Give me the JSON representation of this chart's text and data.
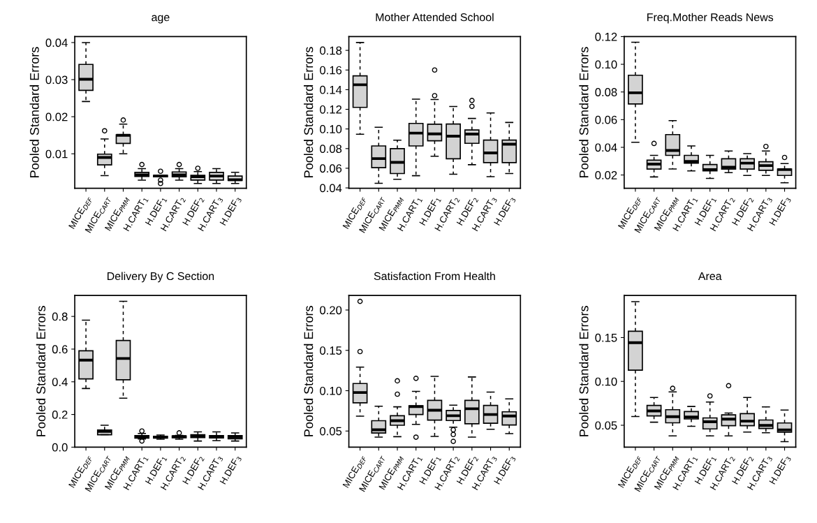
{
  "chart_data": [
    {
      "type": "box",
      "title": "age",
      "ylabel": "Pooled Standard Errors",
      "color": "#d3d3d3",
      "categories": [
        "MICE$_{DEF}$",
        "MICE$_{CART}$",
        "MICE$_{PMM}$",
        "H.CART$_{1}$",
        "H.DEF$_{1}$",
        "H.CART$_{2}$",
        "H.DEF$_{2}$",
        "H.CART$_{3}$",
        "H.DEF$_{3}$"
      ],
      "ylim": [
        0.0007,
        0.0416
      ],
      "yticks": [
        0.01,
        0.02,
        0.03,
        0.04
      ],
      "boxes": [
        {
          "low": 0.0241,
          "q1": 0.0271,
          "median": 0.0301,
          "q3": 0.0341,
          "high": 0.04
        },
        {
          "low": 0.0041,
          "q1": 0.007,
          "median": 0.009,
          "q3": 0.0099,
          "high": 0.014,
          "outliers": [
            0.0162
          ]
        },
        {
          "low": 0.01,
          "q1": 0.0128,
          "median": 0.015,
          "q3": 0.0151,
          "high": 0.018,
          "outliers": [
            0.0191
          ]
        },
        {
          "low": 0.0029,
          "q1": 0.0039,
          "median": 0.0043,
          "q3": 0.005,
          "high": 0.006,
          "outliers": [
            0.0071
          ]
        },
        {
          "low": 0.0038,
          "q1": 0.0038,
          "median": 0.004,
          "q3": 0.0042,
          "high": 0.0042,
          "outliers": [
            0.0053,
            0.0029,
            0.002
          ]
        },
        {
          "low": 0.0029,
          "q1": 0.0038,
          "median": 0.0043,
          "q3": 0.0051,
          "high": 0.006,
          "outliers": [
            0.0071
          ]
        },
        {
          "low": 0.002,
          "q1": 0.0029,
          "median": 0.0038,
          "q3": 0.0042,
          "high": 0.0052,
          "outliers": [
            0.0061
          ]
        },
        {
          "low": 0.002,
          "q1": 0.0029,
          "median": 0.004,
          "q3": 0.005,
          "high": 0.006
        },
        {
          "low": 0.002,
          "q1": 0.0028,
          "median": 0.003,
          "q3": 0.004,
          "high": 0.005
        }
      ]
    },
    {
      "type": "box",
      "title": "Mother Attended School",
      "ylabel": "Pooled Standard Errors",
      "color": "#d3d3d3",
      "categories": [
        "MICE$_{DEF}$",
        "MICE$_{CART}$",
        "MICE$_{PMM}$",
        "H.CART$_{1}$",
        "H.DEF$_{1}$",
        "H.CART$_{2}$",
        "H.DEF$_{2}$",
        "H.CART$_{3}$",
        "H.DEF$_{3}$"
      ],
      "ylim": [
        0.0396,
        0.194
      ],
      "yticks": [
        0.04,
        0.06,
        0.08,
        {
          "value": 0.1,
          "label": "0.10"
        },
        0.12,
        0.14,
        0.16,
        0.18
      ],
      "boxes": [
        {
          "low": 0.0946,
          "q1": 0.122,
          "median": 0.145,
          "q3": 0.154,
          "high": 0.188
        },
        {
          "low": 0.0446,
          "q1": 0.0606,
          "median": 0.0698,
          "q3": 0.0827,
          "high": 0.1017
        },
        {
          "low": 0.0488,
          "q1": 0.0546,
          "median": 0.066,
          "q3": 0.08,
          "high": 0.0885
        },
        {
          "low": 0.0524,
          "q1": 0.0827,
          "median": 0.0958,
          "q3": 0.1056,
          "high": 0.1303
        },
        {
          "low": 0.0722,
          "q1": 0.0879,
          "median": 0.095,
          "q3": 0.1048,
          "high": 0.13,
          "outliers": [
            0.16,
            0.1339
          ]
        },
        {
          "low": 0.0539,
          "q1": 0.0696,
          "median": 0.0927,
          "q3": 0.105,
          "high": 0.1228
        },
        {
          "low": 0.0636,
          "q1": 0.0854,
          "median": 0.0948,
          "q3": 0.099,
          "high": 0.1107,
          "outliers": [
            0.129,
            0.123
          ]
        },
        {
          "low": 0.0515,
          "q1": 0.0657,
          "median": 0.0756,
          "q3": 0.0887,
          "high": 0.1163
        },
        {
          "low": 0.0546,
          "q1": 0.0657,
          "median": 0.0845,
          "q3": 0.0887,
          "high": 0.1066
        }
      ]
    },
    {
      "type": "box",
      "title": "Freq.Mother Reads News",
      "ylabel": "Pooled Standard Errors",
      "color": "#d3d3d3",
      "categories": [
        "MICE$_{DEF}$",
        "MICE$_{CART}$",
        "MICE$_{PMM}$",
        "H.CART$_{1}$",
        "H.DEF$_{1}$",
        "H.CART$_{2}$",
        "H.DEF$_{2}$",
        "H.CART$_{3}$",
        "H.DEF$_{3}$"
      ],
      "ylim": [
        0.0104,
        0.12
      ],
      "yticks": [
        0.02,
        0.04,
        0.06,
        0.08,
        {
          "value": 0.1,
          "label": "0.10"
        },
        0.12
      ],
      "boxes": [
        {
          "low": 0.0436,
          "q1": 0.0713,
          "median": 0.0794,
          "q3": 0.0921,
          "high": 0.1159
        },
        {
          "low": 0.0186,
          "q1": 0.0243,
          "median": 0.0279,
          "q3": 0.0307,
          "high": 0.0342,
          "outliers": [
            0.0428
          ]
        },
        {
          "low": 0.0243,
          "q1": 0.0342,
          "median": 0.0377,
          "q3": 0.0492,
          "high": 0.0593
        },
        {
          "low": 0.023,
          "q1": 0.0285,
          "median": 0.0298,
          "q3": 0.0342,
          "high": 0.041
        },
        {
          "low": 0.0175,
          "q1": 0.023,
          "median": 0.0239,
          "q3": 0.0276,
          "high": 0.0342
        },
        {
          "low": 0.0217,
          "q1": 0.0243,
          "median": 0.0256,
          "q3": 0.0317,
          "high": 0.0373
        },
        {
          "low": 0.0197,
          "q1": 0.0243,
          "median": 0.0286,
          "q3": 0.0317,
          "high": 0.0355
        },
        {
          "low": 0.0197,
          "q1": 0.0234,
          "median": 0.0268,
          "q3": 0.0296,
          "high": 0.0373,
          "outliers": [
            0.0406
          ]
        },
        {
          "low": 0.0144,
          "q1": 0.0197,
          "median": 0.0239,
          "q3": 0.0243,
          "high": 0.0283,
          "outliers": [
            0.0327
          ]
        }
      ]
    },
    {
      "type": "box",
      "title": "Delivery By C Section",
      "ylabel": "Pooled Standard Errors",
      "color": "#d3d3d3",
      "categories": [
        "MICE$_{DEF}$",
        "MICE$_{CART}$",
        "MICE$_{PMM}$",
        "H.CART$_{1}$",
        "H.DEF$_{1}$",
        "H.CART$_{2}$",
        "H.DEF$_{2}$",
        "H.CART$_{3}$",
        "H.DEF$_{3}$"
      ],
      "ylim": [
        0.0,
        0.928
      ],
      "yticks": [
        {
          "value": 0,
          "label": "0.0"
        },
        0.2,
        0.4,
        0.6,
        0.8
      ],
      "boxes": [
        {
          "low": 0.359,
          "q1": 0.4175,
          "median": 0.5325,
          "q3": 0.59,
          "high": 0.7775
        },
        {
          "low": 0.076,
          "q1": 0.076,
          "median": 0.096,
          "q3": 0.105,
          "high": 0.134
        },
        {
          "low": 0.3,
          "q1": 0.4125,
          "median": 0.5425,
          "q3": 0.6525,
          "high": 0.8925
        },
        {
          "low": 0.05,
          "q1": 0.055,
          "median": 0.0625,
          "q3": 0.071,
          "high": 0.084,
          "outliers": [
            0.099,
            0.0375
          ]
        },
        {
          "low": 0.049,
          "q1": 0.055,
          "median": 0.061,
          "q3": 0.067,
          "high": 0.074
        },
        {
          "low": 0.049,
          "q1": 0.0575,
          "median": 0.065,
          "q3": 0.069,
          "high": 0.0725,
          "outliers": [
            0.0875
          ]
        },
        {
          "low": 0.0375,
          "q1": 0.059,
          "median": 0.069,
          "q3": 0.076,
          "high": 0.094
        },
        {
          "low": 0.04,
          "q1": 0.056,
          "median": 0.065,
          "q3": 0.071,
          "high": 0.094
        },
        {
          "low": 0.0375,
          "q1": 0.051,
          "median": 0.0625,
          "q3": 0.071,
          "high": 0.0875
        }
      ]
    },
    {
      "type": "box",
      "title": "Satisfaction From Health",
      "ylabel": "Pooled Standard Errors",
      "color": "#d3d3d3",
      "categories": [
        "MICE$_{DEF}$",
        "MICE$_{CART}$",
        "MICE$_{PMM}$",
        "H.CART$_{1}$",
        "H.DEF$_{1}$",
        "H.CART$_{2}$",
        "H.DEF$_{2}$",
        "H.CART$_{3}$",
        "H.DEF$_{3}$"
      ],
      "ylim": [
        0.03,
        0.218
      ],
      "yticks": [
        0.05,
        {
          "value": 0.1,
          "label": "0.10"
        },
        0.15,
        {
          "value": 0.2,
          "label": "0.20"
        }
      ],
      "boxes": [
        {
          "low": 0.0685,
          "q1": 0.085,
          "median": 0.0977,
          "q3": 0.1089,
          "high": 0.1293,
          "outliers": [
            0.2107,
            0.1485
          ]
        },
        {
          "low": 0.0424,
          "q1": 0.0475,
          "median": 0.0515,
          "q3": 0.0628,
          "high": 0.0807
        },
        {
          "low": 0.043,
          "q1": 0.0572,
          "median": 0.0628,
          "q3": 0.069,
          "high": 0.08,
          "outliers": [
            0.1122,
            0.0957
          ]
        },
        {
          "low": 0.0583,
          "q1": 0.0705,
          "median": 0.0802,
          "q3": 0.0814,
          "high": 0.0992,
          "outliers": [
            0.1153,
            0.0424
          ]
        },
        {
          "low": 0.0433,
          "q1": 0.0636,
          "median": 0.0758,
          "q3": 0.088,
          "high": 0.1178
        },
        {
          "low": 0.0547,
          "q1": 0.063,
          "median": 0.069,
          "q3": 0.0755,
          "high": 0.082,
          "outliers": [
            0.0515,
            0.0457,
            0.0372
          ]
        },
        {
          "low": 0.0424,
          "q1": 0.059,
          "median": 0.0776,
          "q3": 0.088,
          "high": 0.117
        },
        {
          "low": 0.0522,
          "q1": 0.0596,
          "median": 0.0705,
          "q3": 0.0817,
          "high": 0.0982
        },
        {
          "low": 0.0468,
          "q1": 0.0575,
          "median": 0.0687,
          "q3": 0.0738,
          "high": 0.0898
        }
      ]
    },
    {
      "type": "box",
      "title": "Area",
      "ylabel": "Pooled Standard Errors",
      "color": "#d3d3d3",
      "categories": [
        "MICE$_{DEF}$",
        "MICE$_{CART}$",
        "MICE$_{PMM}$",
        "H.CART$_{1}$",
        "H.DEF$_{1}$",
        "H.CART$_{2}$",
        "H.DEF$_{2}$",
        "H.CART$_{3}$",
        "H.DEF$_{3}$"
      ],
      "ylim": [
        0.025,
        0.198
      ],
      "yticks": [
        0.05,
        {
          "value": 0.1,
          "label": "0.10"
        },
        0.15
      ],
      "boxes": [
        {
          "low": 0.06,
          "q1": 0.1128,
          "median": 0.1442,
          "q3": 0.1572,
          "high": 0.191
        },
        {
          "low": 0.0535,
          "q1": 0.0607,
          "median": 0.0663,
          "q3": 0.0726,
          "high": 0.0816
        },
        {
          "low": 0.0379,
          "q1": 0.0528,
          "median": 0.0598,
          "q3": 0.0677,
          "high": 0.0881,
          "outliers": [
            0.0921
          ]
        },
        {
          "low": 0.0488,
          "q1": 0.0572,
          "median": 0.0595,
          "q3": 0.0656,
          "high": 0.0714
        },
        {
          "low": 0.0379,
          "q1": 0.0458,
          "median": 0.054,
          "q3": 0.0584,
          "high": 0.0765,
          "outliers": [
            0.0835
          ]
        },
        {
          "low": 0.0379,
          "q1": 0.0495,
          "median": 0.057,
          "q3": 0.0619,
          "high": 0.064,
          "outliers": [
            0.0951
          ]
        },
        {
          "low": 0.0423,
          "q1": 0.0495,
          "median": 0.0547,
          "q3": 0.0633,
          "high": 0.0816
        },
        {
          "low": 0.0414,
          "q1": 0.0463,
          "median": 0.0498,
          "q3": 0.056,
          "high": 0.0709
        },
        {
          "low": 0.0312,
          "q1": 0.0421,
          "median": 0.0447,
          "q3": 0.0526,
          "high": 0.0674
        }
      ]
    }
  ]
}
